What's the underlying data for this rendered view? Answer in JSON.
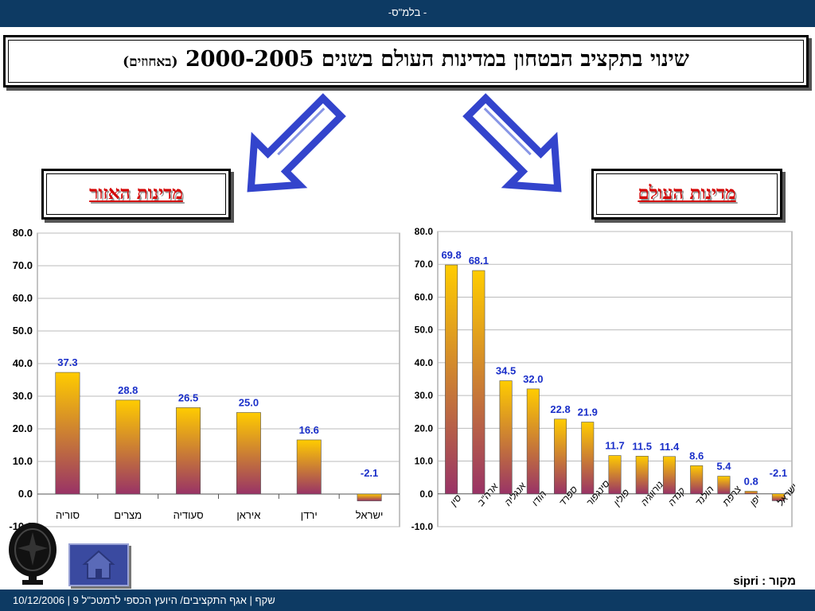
{
  "header": {
    "text": "-בלמ\"ס -"
  },
  "title": {
    "main": "שינוי בתקציב הבטחון במדינות העולם בשנים 2000-2005",
    "sub": "(באחוזים)"
  },
  "labels": {
    "region": "מדינות האזור",
    "world": "מדינות העולם"
  },
  "source": "מקור : sipri",
  "footer": {
    "text": "10/12/2006 |  9 שקף  |  אגף התקציבים/ היועץ הכספי לרמטכ\"ל"
  },
  "colors": {
    "bar_top": "#ffcc00",
    "bar_bottom": "#993366",
    "value_label": "#1a2fc9",
    "arrow": "#3344cc",
    "nav_bar": "#0d3a63"
  },
  "icons": {
    "home": "home-icon",
    "logo": "emblem-icon",
    "arrow_left": "arrow-down-left-icon",
    "arrow_right": "arrow-down-right-icon"
  },
  "chart_data": [
    {
      "type": "bar",
      "categories": [
        "סוריה",
        "מצרים",
        "סעודיה",
        "איראן",
        "ירדן",
        "ישראל"
      ],
      "values": [
        37.3,
        28.8,
        26.5,
        25.0,
        16.6,
        -2.1
      ],
      "value_labels": [
        "37.3",
        "28.8",
        "26.5",
        "25.0",
        "16.6",
        "-2.1"
      ],
      "yticks": [
        "80.0",
        "70.0",
        "60.0",
        "50.0",
        "40.0",
        "30.0",
        "20.0",
        "10.0",
        "0.0",
        "-10.0"
      ],
      "ylim": [
        -10,
        80
      ],
      "grid": true
    },
    {
      "type": "bar",
      "categories": [
        "סין",
        "ארה\"ב",
        "אנגליה",
        "הודו",
        "ספרד",
        "סינגפור",
        "פולין",
        "נורווגיה",
        "קנדה",
        "הולנד",
        "צרפת",
        "יפן",
        "ישראל"
      ],
      "values": [
        69.8,
        68.1,
        34.5,
        32.0,
        22.8,
        21.9,
        11.7,
        11.5,
        11.4,
        8.6,
        5.4,
        0.8,
        -2.1
      ],
      "value_labels": [
        "69.8",
        "68.1",
        "34.5",
        "32.0",
        "22.8",
        "21.9",
        "11.7",
        "11.5",
        "11.4",
        "8.6",
        "5.4",
        "0.8",
        "-2.1"
      ],
      "yticks": [
        "80.0",
        "70.0",
        "60.0",
        "50.0",
        "40.0",
        "30.0",
        "20.0",
        "10.0",
        "0.0",
        "-10.0"
      ],
      "ylim": [
        -10,
        80
      ],
      "grid": true
    }
  ]
}
